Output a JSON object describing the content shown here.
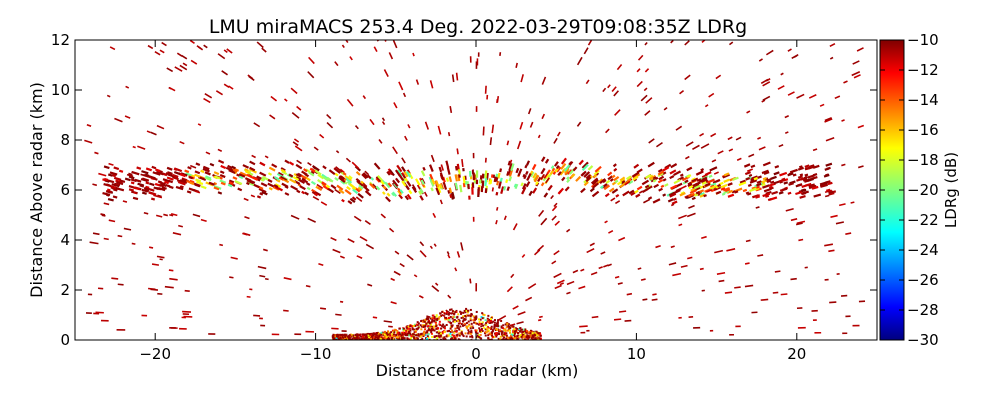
{
  "chart_data": {
    "type": "heatmap",
    "title": "LMU miraMACS 253.4 Deg. 2022-03-29T09:08:35Z  LDRg",
    "xlabel": "Distance from radar (km)",
    "ylabel": "Distance Above radar  (km)",
    "xlim": [
      -25,
      25
    ],
    "ylim": [
      0,
      12
    ],
    "xticks": [
      -20,
      -10,
      0,
      10,
      20
    ],
    "yticks": [
      0,
      2,
      4,
      6,
      8,
      10,
      12
    ],
    "grid": false,
    "colorbar": {
      "label": "LDRg (dB)",
      "range": [
        -30,
        -10
      ],
      "ticks": [
        -30,
        -28,
        -26,
        -24,
        -22,
        -20,
        -18,
        -16,
        -14,
        -12,
        -10
      ],
      "colormap": "jet"
    },
    "features": [
      {
        "name": "elevated layer",
        "x_range": [
          -23,
          22
        ],
        "y_center": 6.3,
        "y_halfwidth": 0.6,
        "ldr_typical": -18
      },
      {
        "name": "near-surface clutter",
        "x_range": [
          -9,
          4
        ],
        "y_range": [
          0,
          1.3
        ],
        "ldr_typical": -12
      },
      {
        "name": "scattered echoes",
        "x_range": [
          -24,
          24
        ],
        "y_range": [
          0.2,
          12
        ],
        "ldr_typical": -10
      }
    ]
  },
  "colors": {
    "jet": [
      "#00007f",
      "#0000ff",
      "#007fff",
      "#00ffff",
      "#7fff7f",
      "#ffff00",
      "#ff7f00",
      "#ff0000",
      "#7f0000"
    ]
  }
}
